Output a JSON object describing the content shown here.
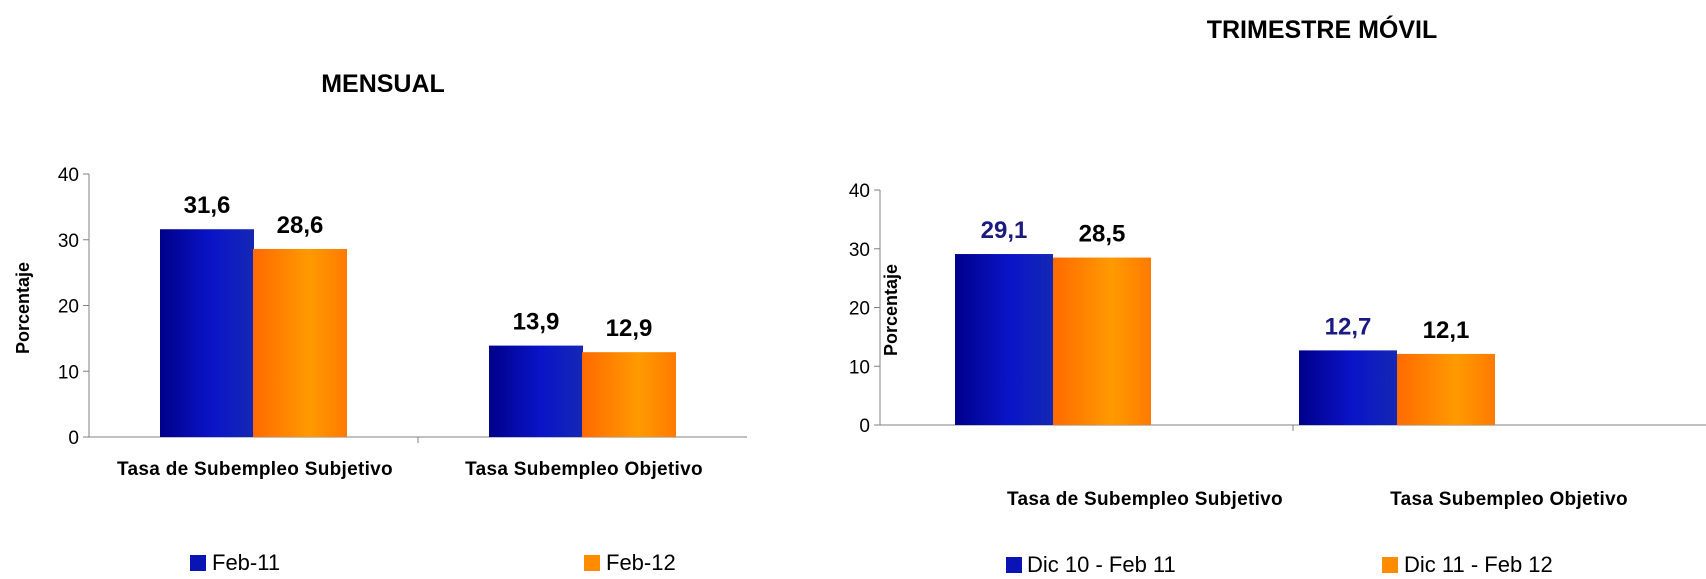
{
  "colors": {
    "series1": "#0a14b4",
    "series2": "#ff8c00",
    "label_dark_blue": "#1a1a80",
    "label_black": "#000000"
  },
  "chart_data": [
    {
      "type": "bar",
      "title": "MENSUAL",
      "ylabel": "Porcentaje",
      "xlabel": "",
      "ylim": [
        0,
        40
      ],
      "yticks": [
        "0",
        "10",
        "20",
        "30",
        "40"
      ],
      "categories": [
        "Tasa de Subempleo Subjetivo",
        "Tasa Subempleo Objetivo"
      ],
      "series": [
        {
          "name": "Feb-11",
          "values": [
            31.6,
            13.9
          ],
          "labels": [
            "31,6",
            "13,9"
          ]
        },
        {
          "name": "Feb-12",
          "values": [
            28.6,
            12.9
          ],
          "labels": [
            "28,6",
            "12,9"
          ]
        }
      ],
      "legend_position": "bottom",
      "grid": false
    },
    {
      "type": "bar",
      "title": "TRIMESTRE MÓVIL",
      "ylabel": "Porcentaje",
      "xlabel": "",
      "ylim": [
        0,
        40
      ],
      "yticks": [
        "0",
        "10",
        "20",
        "30",
        "40"
      ],
      "categories": [
        "Tasa de Subempleo Subjetivo",
        "Tasa Subempleo Objetivo"
      ],
      "series": [
        {
          "name": "Dic 10 - Feb 11",
          "values": [
            29.1,
            12.7
          ],
          "labels": [
            "29,1",
            "12,7"
          ]
        },
        {
          "name": "Dic 11 - Feb 12",
          "values": [
            28.5,
            12.1
          ],
          "labels": [
            "28,5",
            "12,1"
          ]
        }
      ],
      "legend_position": "bottom",
      "grid": false
    }
  ]
}
